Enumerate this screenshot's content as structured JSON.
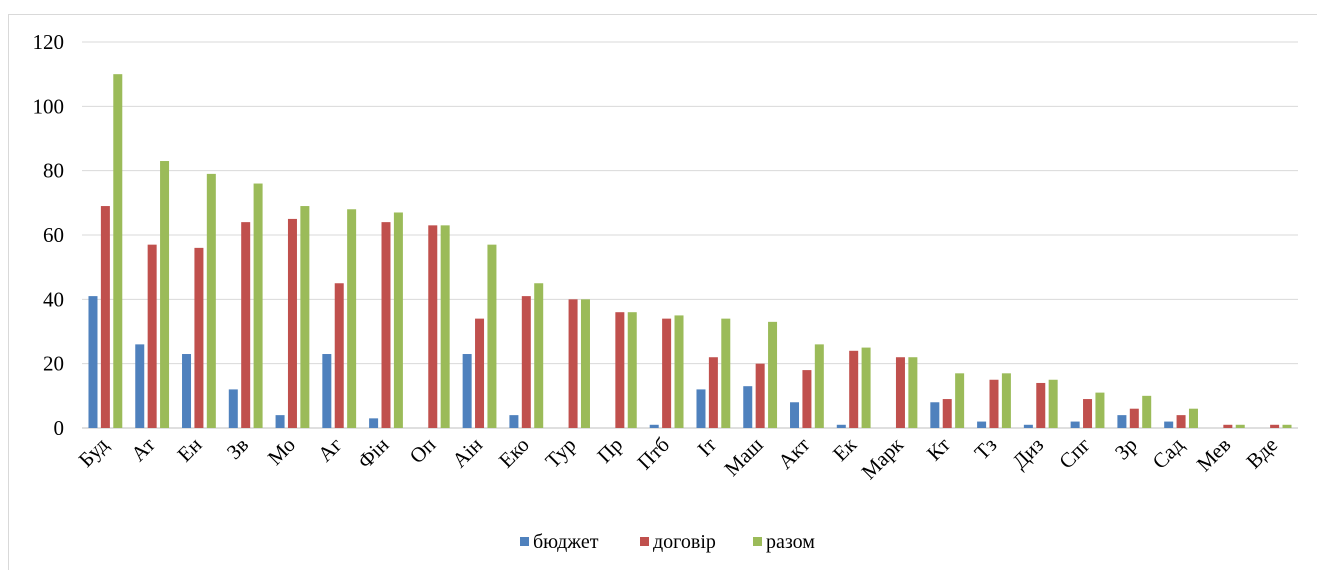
{
  "chart_data": {
    "type": "bar",
    "title": "",
    "xlabel": "",
    "ylabel": "",
    "ylim": [
      0,
      120
    ],
    "yticks": [
      0,
      20,
      40,
      60,
      80,
      100,
      120
    ],
    "grid": true,
    "legend_position": "bottom",
    "categories": [
      "Буд",
      "Ат",
      "Ен",
      "Зв",
      "Мо",
      "Аг",
      "Фін",
      "Оп",
      "Аін",
      "Еко",
      "Тур",
      "Пр",
      "Птб",
      "Іт",
      "Маш",
      "Акт",
      "Ек",
      "Марк",
      "Кт",
      "Тз",
      "Диз",
      "Спг",
      "Зр",
      "Сад",
      "Мев",
      "Вде"
    ],
    "series": [
      {
        "name": "бюджет",
        "color": "#4f81bd",
        "values": [
          41,
          26,
          23,
          12,
          4,
          23,
          3,
          0,
          23,
          4,
          0,
          0,
          1,
          12,
          13,
          8,
          1,
          0,
          8,
          2,
          1,
          2,
          4,
          2,
          0,
          0
        ]
      },
      {
        "name": "договір",
        "color": "#c0504d",
        "values": [
          69,
          57,
          56,
          64,
          65,
          45,
          64,
          63,
          34,
          41,
          40,
          36,
          34,
          22,
          20,
          18,
          24,
          22,
          9,
          15,
          14,
          9,
          6,
          4,
          1,
          1
        ]
      },
      {
        "name": "разом",
        "color": "#9bbb59",
        "values": [
          110,
          83,
          79,
          76,
          69,
          68,
          67,
          63,
          57,
          45,
          40,
          36,
          35,
          34,
          33,
          26,
          25,
          22,
          17,
          17,
          15,
          11,
          10,
          6,
          1,
          1
        ]
      }
    ]
  }
}
